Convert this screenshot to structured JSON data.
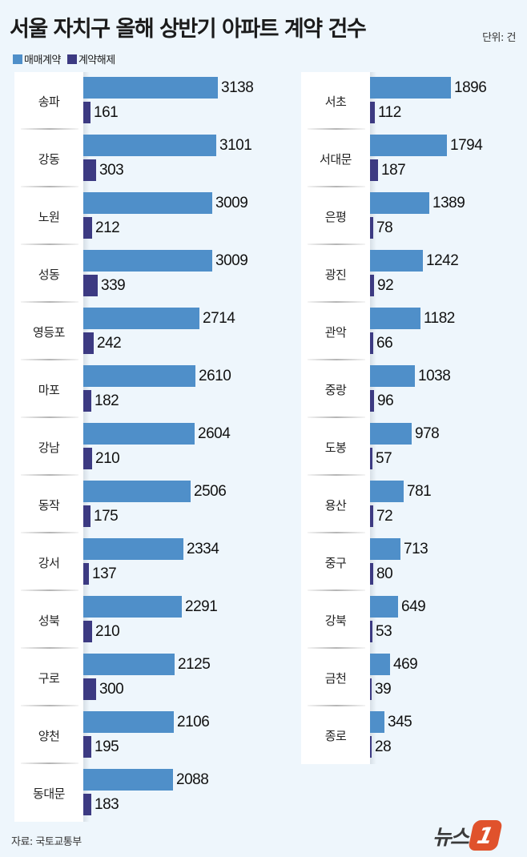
{
  "header": {
    "title": "서울 자치구 올해 상반기 아파트 계약 건수",
    "unit": "단위: 건"
  },
  "legend": [
    {
      "label": "매매계약",
      "color": "#4f8fc9"
    },
    {
      "label": "계약해제",
      "color": "#3c3a82"
    }
  ],
  "footer": {
    "source": "자료: 국토교통부",
    "logo_text": "뉴스",
    "logo_mark": "1"
  },
  "colors": {
    "sale": "#4f8fc9",
    "cancel": "#3c3a82",
    "background": "#eef6fc",
    "logo": "#e0522c"
  },
  "chart_data": {
    "type": "bar",
    "orientation": "horizontal",
    "title": "서울 자치구 올해 상반기 아파트 계약 건수",
    "unit": "건",
    "legend_position": "top-left",
    "grid": false,
    "categories": [
      "송파",
      "강동",
      "노원",
      "성동",
      "영등포",
      "마포",
      "강남",
      "동작",
      "강서",
      "성북",
      "구로",
      "양천",
      "동대문",
      "서초",
      "서대문",
      "은평",
      "광진",
      "관악",
      "중랑",
      "도봉",
      "용산",
      "중구",
      "강북",
      "금천",
      "종로"
    ],
    "series": [
      {
        "name": "매매계약",
        "values": [
          3138,
          3101,
          3009,
          3009,
          2714,
          2610,
          2604,
          2506,
          2334,
          2291,
          2125,
          2106,
          2088,
          1896,
          1794,
          1389,
          1242,
          1182,
          1038,
          978,
          781,
          713,
          649,
          469,
          345
        ]
      },
      {
        "name": "계약해제",
        "values": [
          161,
          303,
          212,
          339,
          242,
          182,
          210,
          175,
          137,
          210,
          300,
          195,
          183,
          112,
          187,
          78,
          92,
          66,
          96,
          57,
          72,
          80,
          53,
          39,
          28
        ]
      }
    ],
    "source": "국토교통부"
  },
  "columns": {
    "left": [
      {
        "name": "송파",
        "sale": "3138",
        "cancel": "161"
      },
      {
        "name": "강동",
        "sale": "3101",
        "cancel": "303"
      },
      {
        "name": "노원",
        "sale": "3009",
        "cancel": "212"
      },
      {
        "name": "성동",
        "sale": "3009",
        "cancel": "339"
      },
      {
        "name": "영등포",
        "sale": "2714",
        "cancel": "242"
      },
      {
        "name": "마포",
        "sale": "2610",
        "cancel": "182"
      },
      {
        "name": "강남",
        "sale": "2604",
        "cancel": "210"
      },
      {
        "name": "동작",
        "sale": "2506",
        "cancel": "175"
      },
      {
        "name": "강서",
        "sale": "2334",
        "cancel": "137"
      },
      {
        "name": "성북",
        "sale": "2291",
        "cancel": "210"
      },
      {
        "name": "구로",
        "sale": "2125",
        "cancel": "300"
      },
      {
        "name": "양천",
        "sale": "2106",
        "cancel": "195"
      },
      {
        "name": "동대문",
        "sale": "2088",
        "cancel": "183"
      }
    ],
    "right": [
      {
        "name": "서초",
        "sale": "1896",
        "cancel": "112"
      },
      {
        "name": "서대문",
        "sale": "1794",
        "cancel": "187"
      },
      {
        "name": "은평",
        "sale": "1389",
        "cancel": "78"
      },
      {
        "name": "광진",
        "sale": "1242",
        "cancel": "92"
      },
      {
        "name": "관악",
        "sale": "1182",
        "cancel": "66"
      },
      {
        "name": "중랑",
        "sale": "1038",
        "cancel": "96"
      },
      {
        "name": "도봉",
        "sale": "978",
        "cancel": "57"
      },
      {
        "name": "용산",
        "sale": "781",
        "cancel": "72"
      },
      {
        "name": "중구",
        "sale": "713",
        "cancel": "80"
      },
      {
        "name": "강북",
        "sale": "649",
        "cancel": "53"
      },
      {
        "name": "금천",
        "sale": "469",
        "cancel": "39"
      },
      {
        "name": "종로",
        "sale": "345",
        "cancel": "28"
      }
    ]
  }
}
